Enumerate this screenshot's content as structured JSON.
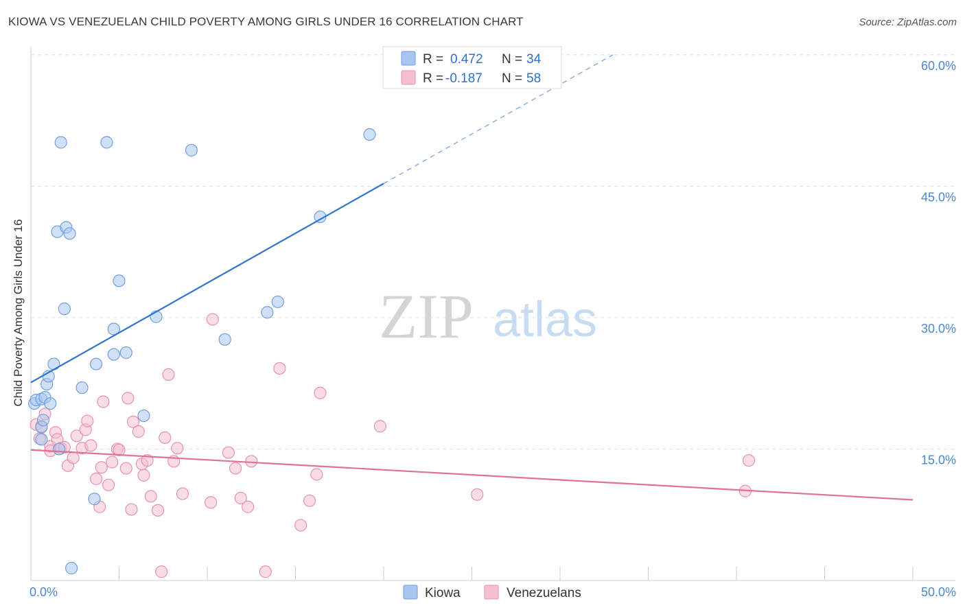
{
  "title": "KIOWA VS VENEZUELAN CHILD POVERTY AMONG GIRLS UNDER 16 CORRELATION CHART",
  "source": "Source: ZipAtlas.com",
  "watermark": {
    "zip": "ZIP",
    "atlas": "atlas"
  },
  "colors": {
    "kiowa_fill": "#a9c6ee",
    "kiowa_stroke": "#6f9fdc",
    "kiowa_line": "#2f73d0",
    "venez_fill": "#f6bfd0",
    "venez_stroke": "#e891ad",
    "venez_line": "#e0709a",
    "tick_color": "#4a86d0",
    "grid": "#dcdcdc"
  },
  "legend": {
    "rows": [
      {
        "r_label": "R =",
        "r_value": "0.472",
        "n_label": "N =",
        "n_value": "34"
      },
      {
        "r_label": "R =",
        "r_value": "-0.187",
        "n_label": "N =",
        "n_value": "58"
      }
    ]
  },
  "chart_data": {
    "type": "scatter",
    "title": "KIOWA VS VENEZUELAN CHILD POVERTY AMONG GIRLS UNDER 16 CORRELATION CHART",
    "xlabel": "",
    "ylabel": "Child Poverty Among Girls Under 16",
    "xlim": [
      0,
      50
    ],
    "ylim": [
      0,
      60
    ],
    "x_tick_labels": [
      "0.0%",
      "50.0%"
    ],
    "y_ticks": [
      15,
      30,
      45,
      60
    ],
    "y_tick_labels": [
      "15.0%",
      "30.0%",
      "45.0%",
      "60.0%"
    ],
    "grid": true,
    "legend_position": "top-center",
    "series": [
      {
        "name": "Kiowa",
        "points": [
          [
            0.2,
            20.2
          ],
          [
            0.3,
            20.6
          ],
          [
            0.6,
            16.1
          ],
          [
            0.6,
            20.7
          ],
          [
            0.6,
            17.5
          ],
          [
            0.7,
            18.3
          ],
          [
            0.8,
            20.9
          ],
          [
            0.9,
            22.4
          ],
          [
            1.0,
            23.3
          ],
          [
            1.1,
            20.2
          ],
          [
            1.3,
            24.7
          ],
          [
            1.5,
            39.8
          ],
          [
            1.6,
            15.0
          ],
          [
            1.7,
            50.0
          ],
          [
            1.9,
            31.0
          ],
          [
            2.0,
            40.3
          ],
          [
            2.2,
            39.6
          ],
          [
            2.3,
            1.4
          ],
          [
            2.9,
            22.0
          ],
          [
            3.6,
            9.3
          ],
          [
            3.7,
            24.7
          ],
          [
            4.3,
            50.0
          ],
          [
            4.7,
            25.8
          ],
          [
            4.7,
            28.7
          ],
          [
            5.0,
            34.2
          ],
          [
            5.4,
            26.0
          ],
          [
            6.4,
            18.8
          ],
          [
            7.1,
            30.1
          ],
          [
            9.1,
            49.1
          ],
          [
            11.0,
            27.5
          ],
          [
            13.4,
            30.6
          ],
          [
            14.0,
            31.8
          ],
          [
            16.4,
            41.5
          ],
          [
            19.2,
            50.9
          ]
        ]
      },
      {
        "name": "Venezuelans",
        "points": [
          [
            0.3,
            17.8
          ],
          [
            0.5,
            16.2
          ],
          [
            0.6,
            17.6
          ],
          [
            0.8,
            19.0
          ],
          [
            1.1,
            15.3
          ],
          [
            1.1,
            14.8
          ],
          [
            1.4,
            16.9
          ],
          [
            1.5,
            16.1
          ],
          [
            1.7,
            15.1
          ],
          [
            1.9,
            15.2
          ],
          [
            2.1,
            13.1
          ],
          [
            2.4,
            14.0
          ],
          [
            2.6,
            16.5
          ],
          [
            2.9,
            15.1
          ],
          [
            3.1,
            17.2
          ],
          [
            3.2,
            18.2
          ],
          [
            3.4,
            15.4
          ],
          [
            3.7,
            11.6
          ],
          [
            3.9,
            8.4
          ],
          [
            4.0,
            12.9
          ],
          [
            4.1,
            20.4
          ],
          [
            4.4,
            10.9
          ],
          [
            4.6,
            13.5
          ],
          [
            4.9,
            15.0
          ],
          [
            5.0,
            14.9
          ],
          [
            5.4,
            12.8
          ],
          [
            5.5,
            20.8
          ],
          [
            5.7,
            8.1
          ],
          [
            5.8,
            18.1
          ],
          [
            6.1,
            17.0
          ],
          [
            6.3,
            13.3
          ],
          [
            6.4,
            12.0
          ],
          [
            6.6,
            13.7
          ],
          [
            6.8,
            9.6
          ],
          [
            7.2,
            8.0
          ],
          [
            7.4,
            1.0
          ],
          [
            7.6,
            16.3
          ],
          [
            7.8,
            23.5
          ],
          [
            8.1,
            13.6
          ],
          [
            8.3,
            15.1
          ],
          [
            8.6,
            9.9
          ],
          [
            10.2,
            8.9
          ],
          [
            10.3,
            29.8
          ],
          [
            11.2,
            14.6
          ],
          [
            11.6,
            12.8
          ],
          [
            11.9,
            9.4
          ],
          [
            12.3,
            8.4
          ],
          [
            12.5,
            13.6
          ],
          [
            13.3,
            1.0
          ],
          [
            14.1,
            24.2
          ],
          [
            15.3,
            6.3
          ],
          [
            15.8,
            9.1
          ],
          [
            16.2,
            12.1
          ],
          [
            16.4,
            21.4
          ],
          [
            19.8,
            17.6
          ],
          [
            25.3,
            9.8
          ],
          [
            40.5,
            10.2
          ],
          [
            40.7,
            13.7
          ]
        ]
      }
    ],
    "trend_lines": [
      {
        "series": "Kiowa",
        "x_start": 0,
        "y_start": 22.6,
        "x_end": 20.0,
        "y_end": 45.3,
        "dashed_to_x": 33.0,
        "dashed_to_y": 60.0
      },
      {
        "series": "Venezuelans",
        "x_start": 0,
        "y_start": 14.9,
        "x_end": 50.0,
        "y_end": 9.2
      }
    ]
  },
  "bottom_legend": [
    {
      "label": "Kiowa"
    },
    {
      "label": "Venezuelans"
    }
  ]
}
